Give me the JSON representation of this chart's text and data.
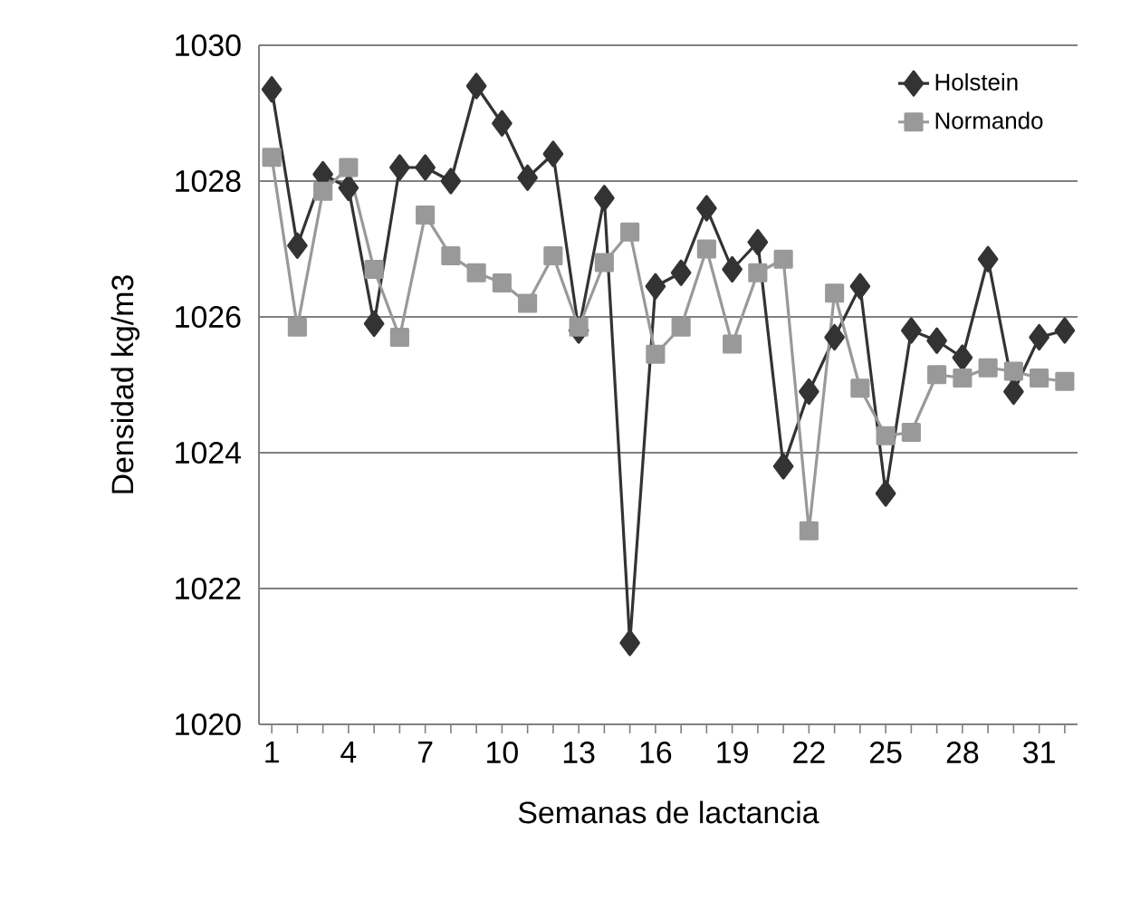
{
  "chart_data": {
    "type": "line",
    "xlabel": "Semanas de lactancia",
    "ylabel": "Densidad kg/m3",
    "categories": [
      "1",
      null,
      null,
      "4",
      null,
      null,
      "7",
      null,
      null,
      "10",
      null,
      null,
      "13",
      null,
      null,
      "16",
      null,
      null,
      "19",
      null,
      null,
      "22",
      null,
      null,
      "25",
      null,
      null,
      "28",
      null,
      null,
      "31",
      null
    ],
    "series": [
      {
        "name": "Holstein",
        "color": "#333333",
        "marker": "diamond",
        "values": [
          1029.35,
          1027.05,
          1028.1,
          1027.9,
          1025.9,
          1028.2,
          1028.2,
          1028.0,
          1029.4,
          1028.85,
          1028.05,
          1028.4,
          1025.8,
          1027.75,
          1021.2,
          1026.45,
          1026.65,
          1027.6,
          1026.7,
          1027.1,
          1023.8,
          1024.9,
          1025.7,
          1026.45,
          1023.4,
          1025.8,
          1025.65,
          1025.4,
          1026.85,
          1024.9,
          1025.7,
          1025.8
        ]
      },
      {
        "name": "Normando",
        "color": "#999999",
        "marker": "square",
        "values": [
          1028.35,
          1025.85,
          1027.85,
          1028.2,
          1026.7,
          1025.7,
          1027.5,
          1026.9,
          1026.65,
          1026.5,
          1026.2,
          1026.9,
          1025.85,
          1026.8,
          1027.25,
          1025.45,
          1025.85,
          1027.0,
          1025.6,
          1026.65,
          1026.85,
          1022.85,
          1026.35,
          1024.95,
          1024.25,
          1024.3,
          1025.15,
          1025.1,
          1025.25,
          1025.2,
          1025.1,
          1025.05
        ]
      }
    ],
    "ylim": [
      1020,
      1030
    ],
    "yticks": [
      1020,
      1022,
      1024,
      1026,
      1028,
      1030
    ],
    "grid": "y",
    "legend": "top right",
    "line_style": "solid"
  }
}
